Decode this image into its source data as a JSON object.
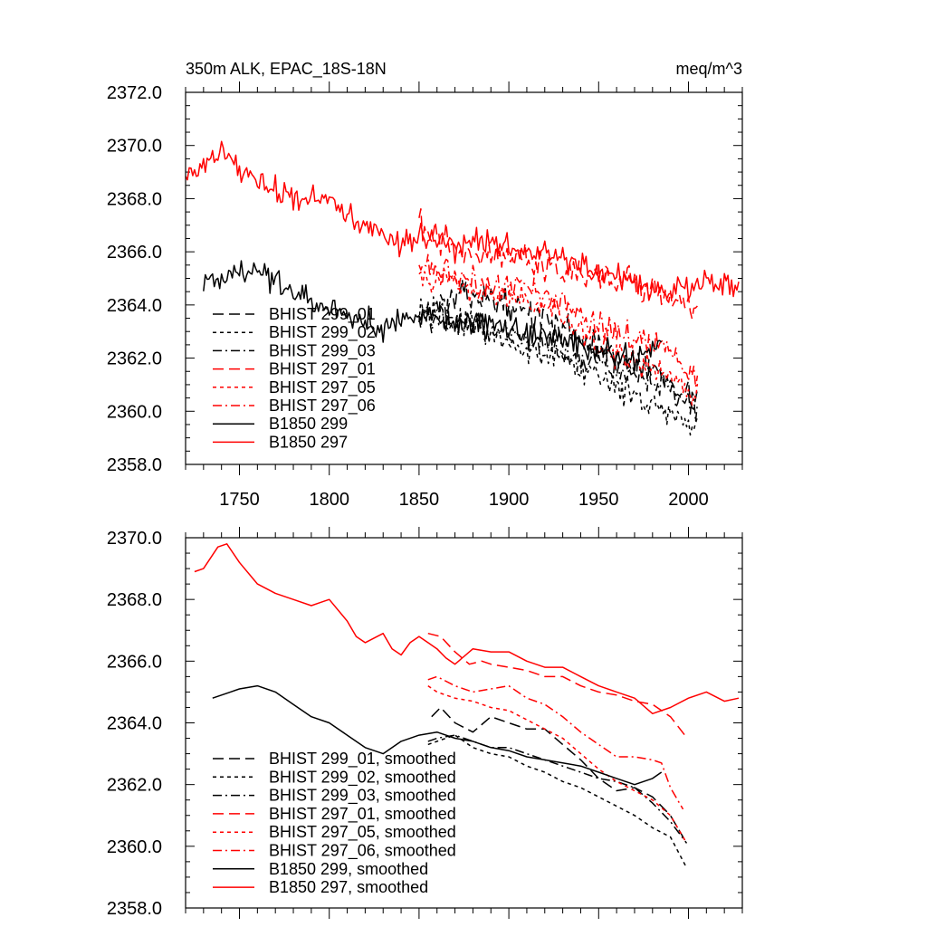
{
  "chart_data": [
    {
      "type": "line",
      "title_left": "350m ALK, EPAC_18S-18N",
      "title_right": "meq/m^3",
      "xlim": [
        1720,
        2030
      ],
      "ylim": [
        2358,
        2372
      ],
      "x_ticks": [
        1750,
        1800,
        1850,
        1900,
        1950,
        2000
      ],
      "y_ticks": [
        2358.0,
        2360.0,
        2362.0,
        2364.0,
        2366.0,
        2368.0,
        2370.0,
        2372.0
      ],
      "y_tick_labels": [
        "2358.0",
        "2360.0",
        "2362.0",
        "2364.0",
        "2366.0",
        "2368.0",
        "2370.0",
        "2372.0"
      ],
      "x_tick_labels": [
        "1750",
        "1800",
        "1850",
        "1900",
        "1950",
        "2000"
      ],
      "grid": false,
      "legend_position": "bottom-left",
      "series": [
        {
          "name": "BHIST 299_01",
          "color": "#000000",
          "dash": "long-dash",
          "noise": 0.55,
          "x": [
            1850,
            1860,
            1870,
            1880,
            1890,
            1900,
            1910,
            1920,
            1930,
            1940,
            1950,
            1960,
            1970,
            1980,
            1990,
            2000,
            2005
          ],
          "y": [
            2363.6,
            2363.9,
            2364.2,
            2364.4,
            2364.2,
            2364.0,
            2363.7,
            2363.4,
            2363.2,
            2362.7,
            2362.4,
            2362.0,
            2361.6,
            2361.6,
            2361.2,
            2360.6,
            2360.4
          ]
        },
        {
          "name": "BHIST 299_02",
          "color": "#000000",
          "dash": "short-dash",
          "noise": 0.55,
          "x": [
            1850,
            1860,
            1870,
            1880,
            1890,
            1900,
            1910,
            1920,
            1930,
            1940,
            1950,
            1960,
            1970,
            1980,
            1990,
            2000,
            2005
          ],
          "y": [
            2363.8,
            2363.6,
            2363.4,
            2363.2,
            2362.9,
            2362.6,
            2362.4,
            2362.2,
            2362.0,
            2361.6,
            2361.2,
            2360.9,
            2360.6,
            2360.3,
            2360.0,
            2359.5,
            2359.2
          ]
        },
        {
          "name": "BHIST 299_03",
          "color": "#000000",
          "dash": "dash-dot",
          "noise": 0.55,
          "x": [
            1850,
            1860,
            1870,
            1880,
            1890,
            1900,
            1910,
            1920,
            1930,
            1940,
            1950,
            1960,
            1970,
            1980,
            1990,
            2000,
            2005
          ],
          "y": [
            2363.7,
            2363.6,
            2363.5,
            2363.4,
            2363.1,
            2362.9,
            2362.7,
            2362.5,
            2362.3,
            2362.0,
            2361.8,
            2361.6,
            2361.4,
            2361.2,
            2360.9,
            2360.4,
            2360.1
          ]
        },
        {
          "name": "BHIST 297_01",
          "color": "#ff0000",
          "dash": "long-dash",
          "noise": 0.55,
          "x": [
            1850,
            1860,
            1870,
            1880,
            1890,
            1900,
            1910,
            1920,
            1930,
            1940,
            1950,
            1960,
            1970,
            1980,
            1990,
            2000,
            2005
          ],
          "y": [
            2366.9,
            2366.7,
            2366.2,
            2365.9,
            2365.9,
            2365.9,
            2365.7,
            2365.4,
            2365.3,
            2365.2,
            2365.0,
            2364.8,
            2364.7,
            2364.5,
            2364.2,
            2363.8,
            2363.6
          ]
        },
        {
          "name": "BHIST 297_05",
          "color": "#ff0000",
          "dash": "short-dash",
          "noise": 0.55,
          "x": [
            1850,
            1860,
            1870,
            1880,
            1890,
            1900,
            1910,
            1920,
            1930,
            1940,
            1950,
            1960,
            1970,
            1980,
            1990,
            2000,
            2005
          ],
          "y": [
            2365.2,
            2365.0,
            2364.8,
            2364.6,
            2364.4,
            2364.2,
            2364.0,
            2363.9,
            2363.4,
            2363.0,
            2362.6,
            2362.2,
            2361.9,
            2361.6,
            2361.2,
            2360.7,
            2360.5
          ]
        },
        {
          "name": "BHIST 297_06",
          "color": "#ff0000",
          "dash": "dash-dot",
          "noise": 0.55,
          "x": [
            1850,
            1860,
            1870,
            1880,
            1890,
            1900,
            1910,
            1920,
            1930,
            1940,
            1950,
            1960,
            1970,
            1980,
            1990,
            2000,
            2005
          ],
          "y": [
            2365.4,
            2365.3,
            2365.1,
            2364.9,
            2364.8,
            2364.7,
            2364.6,
            2364.3,
            2364.0,
            2363.6,
            2363.2,
            2362.9,
            2362.6,
            2362.6,
            2362.1,
            2361.4,
            2361.2
          ]
        },
        {
          "name": "B1850 299",
          "color": "#000000",
          "dash": "solid",
          "noise": 0.5,
          "x": [
            1730,
            1740,
            1750,
            1760,
            1770,
            1780,
            1790,
            1800,
            1810,
            1820,
            1830,
            1840,
            1850,
            1860,
            1870,
            1880,
            1890,
            1900,
            1910,
            1920,
            1930,
            1940,
            1950,
            1960,
            1970,
            1980,
            1985
          ],
          "y": [
            2364.8,
            2365.0,
            2365.2,
            2365.2,
            2365.0,
            2364.6,
            2364.2,
            2363.9,
            2363.5,
            2363.3,
            2363.1,
            2363.4,
            2363.6,
            2363.6,
            2363.4,
            2363.3,
            2363.2,
            2363.1,
            2362.9,
            2362.8,
            2362.7,
            2362.5,
            2362.3,
            2362.1,
            2362.0,
            2362.3,
            2362.5
          ]
        },
        {
          "name": "B1850 297",
          "color": "#ff0000",
          "dash": "solid",
          "noise": 0.5,
          "x": [
            1720,
            1730,
            1740,
            1750,
            1760,
            1770,
            1780,
            1790,
            1800,
            1810,
            1820,
            1830,
            1840,
            1850,
            1860,
            1870,
            1880,
            1890,
            1900,
            1910,
            1920,
            1930,
            1940,
            1950,
            1960,
            1970,
            1980,
            1990,
            2000,
            2010,
            2020,
            2028
          ],
          "y": [
            2369.0,
            2369.1,
            2369.8,
            2369.2,
            2368.6,
            2368.3,
            2368.1,
            2367.9,
            2368.0,
            2367.4,
            2366.8,
            2366.9,
            2366.3,
            2366.6,
            2366.6,
            2366.0,
            2366.4,
            2366.3,
            2366.2,
            2366.0,
            2365.9,
            2365.7,
            2365.5,
            2365.2,
            2365.0,
            2364.8,
            2364.5,
            2364.5,
            2364.6,
            2365.0,
            2364.8,
            2364.8
          ]
        }
      ]
    },
    {
      "type": "line",
      "title_left": "",
      "title_right": "",
      "xlim": [
        1720,
        2030
      ],
      "ylim": [
        2358,
        2370
      ],
      "x_ticks": [
        1750,
        1800,
        1850,
        1900,
        1950,
        2000
      ],
      "y_ticks": [
        2358.0,
        2360.0,
        2362.0,
        2364.0,
        2366.0,
        2368.0,
        2370.0
      ],
      "y_tick_labels": [
        "2358.0",
        "2360.0",
        "2362.0",
        "2364.0",
        "2366.0",
        "2368.0",
        "2370.0"
      ],
      "x_tick_labels": [],
      "grid": false,
      "legend_position": "bottom-left",
      "series": [
        {
          "name": "BHIST 299_01, smoothed",
          "color": "#000000",
          "dash": "long-dash",
          "noise": 0,
          "x": [
            1857,
            1862,
            1870,
            1880,
            1890,
            1900,
            1910,
            1920,
            1930,
            1940,
            1950,
            1960,
            1970,
            1980,
            1990,
            1999
          ],
          "y": [
            2364.2,
            2364.5,
            2364.0,
            2363.7,
            2364.2,
            2364.0,
            2363.8,
            2363.8,
            2363.3,
            2362.8,
            2362.2,
            2361.8,
            2361.9,
            2361.6,
            2361.0,
            2360.1
          ]
        },
        {
          "name": "BHIST 299_02, smoothed",
          "color": "#000000",
          "dash": "short-dash",
          "noise": 0,
          "x": [
            1855,
            1860,
            1870,
            1880,
            1890,
            1900,
            1910,
            1920,
            1930,
            1940,
            1950,
            1960,
            1970,
            1980,
            1990,
            1999
          ],
          "y": [
            2363.3,
            2363.4,
            2363.6,
            2363.2,
            2363.0,
            2362.9,
            2362.6,
            2362.4,
            2362.1,
            2361.9,
            2361.6,
            2361.3,
            2361.0,
            2360.6,
            2360.3,
            2359.3
          ]
        },
        {
          "name": "BHIST 299_03, smoothed",
          "color": "#000000",
          "dash": "dash-dot",
          "noise": 0,
          "x": [
            1855,
            1860,
            1870,
            1880,
            1890,
            1900,
            1910,
            1920,
            1930,
            1940,
            1950,
            1960,
            1970,
            1980,
            1990,
            1999
          ],
          "y": [
            2363.4,
            2363.5,
            2363.6,
            2363.4,
            2363.2,
            2363.2,
            2363.0,
            2362.8,
            2362.6,
            2362.4,
            2362.2,
            2362.1,
            2361.9,
            2361.4,
            2360.8,
            2360.1
          ]
        },
        {
          "name": "BHIST 297_01, smoothed",
          "color": "#ff0000",
          "dash": "long-dash",
          "noise": 0,
          "x": [
            1855,
            1862,
            1870,
            1878,
            1885,
            1890,
            1900,
            1910,
            1920,
            1930,
            1940,
            1950,
            1960,
            1970,
            1980,
            1990,
            1998
          ],
          "y": [
            2366.9,
            2366.8,
            2366.3,
            2365.9,
            2366.0,
            2365.9,
            2365.8,
            2365.7,
            2365.5,
            2365.5,
            2365.2,
            2365.0,
            2364.9,
            2364.7,
            2364.6,
            2364.2,
            2363.6
          ]
        },
        {
          "name": "BHIST 297_05, smoothed",
          "color": "#ff0000",
          "dash": "short-dash",
          "noise": 0,
          "x": [
            1855,
            1860,
            1870,
            1880,
            1890,
            1900,
            1910,
            1920,
            1930,
            1940,
            1950,
            1960,
            1970,
            1980,
            1990,
            1999
          ],
          "y": [
            2365.2,
            2365.0,
            2364.8,
            2364.7,
            2364.5,
            2364.4,
            2364.1,
            2363.8,
            2363.5,
            2363.0,
            2362.5,
            2362.1,
            2361.8,
            2361.5,
            2361.0,
            2360.1
          ]
        },
        {
          "name": "BHIST 297_06, smoothed",
          "color": "#ff0000",
          "dash": "dash-dot",
          "noise": 0,
          "x": [
            1855,
            1860,
            1870,
            1880,
            1890,
            1900,
            1910,
            1920,
            1930,
            1940,
            1950,
            1960,
            1970,
            1980,
            1985,
            1990,
            1997
          ],
          "y": [
            2365.4,
            2365.5,
            2365.2,
            2365.0,
            2365.1,
            2365.2,
            2364.8,
            2364.6,
            2364.2,
            2363.7,
            2363.3,
            2362.9,
            2362.9,
            2362.8,
            2362.7,
            2361.9,
            2361.2
          ]
        },
        {
          "name": "B1850 299, smoothed",
          "color": "#000000",
          "dash": "solid",
          "noise": 0,
          "x": [
            1735,
            1740,
            1745,
            1750,
            1760,
            1770,
            1780,
            1790,
            1800,
            1810,
            1820,
            1830,
            1840,
            1850,
            1860,
            1870,
            1880,
            1890,
            1900,
            1910,
            1920,
            1930,
            1940,
            1950,
            1960,
            1970,
            1980,
            1985
          ],
          "y": [
            2364.8,
            2364.9,
            2365.0,
            2365.1,
            2365.2,
            2365.0,
            2364.6,
            2364.2,
            2364.0,
            2363.6,
            2363.2,
            2363.0,
            2363.4,
            2363.6,
            2363.7,
            2363.5,
            2363.4,
            2363.2,
            2363.1,
            2362.9,
            2362.8,
            2362.7,
            2362.6,
            2362.4,
            2362.2,
            2362.0,
            2362.2,
            2362.4
          ]
        },
        {
          "name": "B1850 297, smoothed",
          "color": "#ff0000",
          "dash": "solid",
          "noise": 0,
          "x": [
            1725,
            1730,
            1738,
            1743,
            1750,
            1760,
            1770,
            1780,
            1790,
            1795,
            1800,
            1810,
            1815,
            1820,
            1830,
            1835,
            1840,
            1845,
            1850,
            1855,
            1860,
            1865,
            1870,
            1880,
            1890,
            1900,
            1910,
            1920,
            1930,
            1940,
            1950,
            1960,
            1970,
            1980,
            1990,
            2000,
            2010,
            2020,
            2028
          ],
          "y": [
            2368.9,
            2369.0,
            2369.7,
            2369.8,
            2369.2,
            2368.5,
            2368.2,
            2368.0,
            2367.8,
            2367.9,
            2368.0,
            2367.3,
            2366.8,
            2366.6,
            2366.9,
            2366.4,
            2366.2,
            2366.6,
            2366.8,
            2366.6,
            2366.4,
            2366.1,
            2365.9,
            2366.4,
            2366.3,
            2366.3,
            2366.0,
            2365.8,
            2365.8,
            2365.5,
            2365.2,
            2365.0,
            2364.8,
            2364.3,
            2364.5,
            2364.8,
            2365.0,
            2364.7,
            2364.8
          ]
        }
      ]
    }
  ]
}
